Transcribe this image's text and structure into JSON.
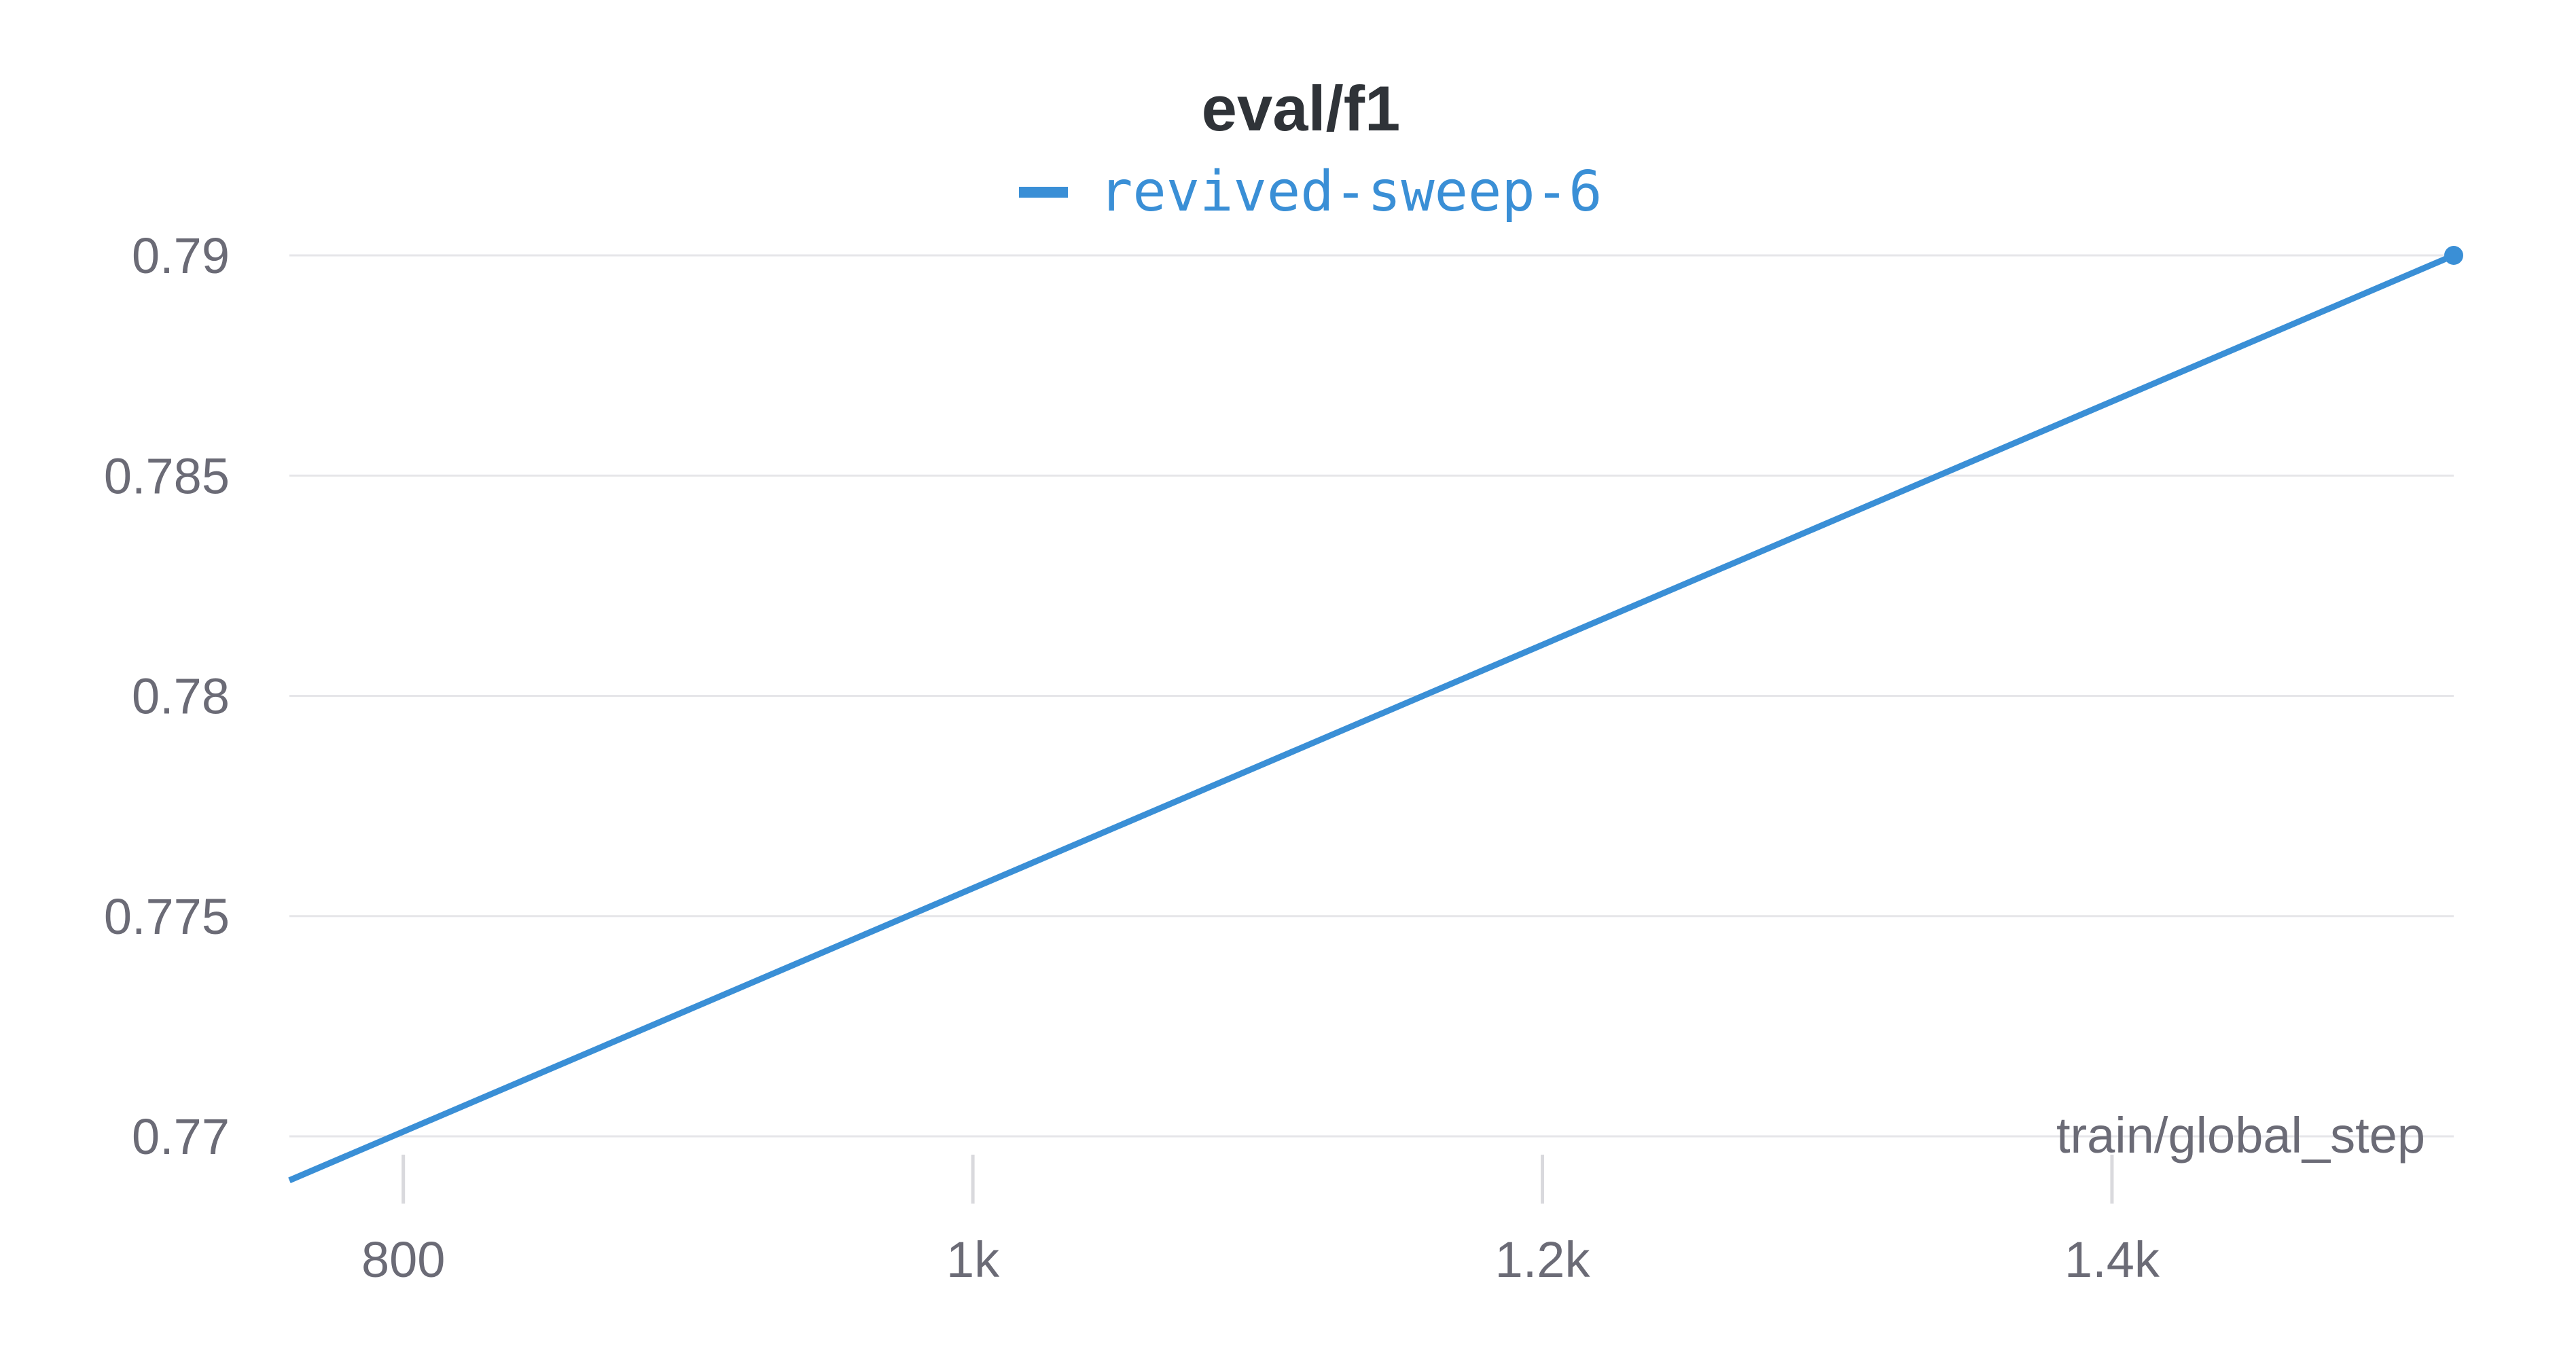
{
  "chart_data": {
    "type": "line",
    "title": "eval/f1",
    "xlabel": "train/global_step",
    "ylabel": "",
    "xlim": [
      760,
      1520
    ],
    "ylim": [
      0.769,
      0.79
    ],
    "x_ticks": [
      800,
      1000,
      1200,
      1400
    ],
    "x_tick_labels": [
      "800",
      "1k",
      "1.2k",
      "1.4k"
    ],
    "y_ticks": [
      0.77,
      0.775,
      0.78,
      0.785,
      0.79
    ],
    "y_tick_labels": [
      "0.77",
      "0.775",
      "0.78",
      "0.785",
      "0.79"
    ],
    "grid": true,
    "legend_position": "top-center",
    "series": [
      {
        "name": "revived-sweep-6",
        "color": "#3a8fd6",
        "x": [
          760,
          1520
        ],
        "y": [
          0.769,
          0.79
        ]
      }
    ]
  }
}
